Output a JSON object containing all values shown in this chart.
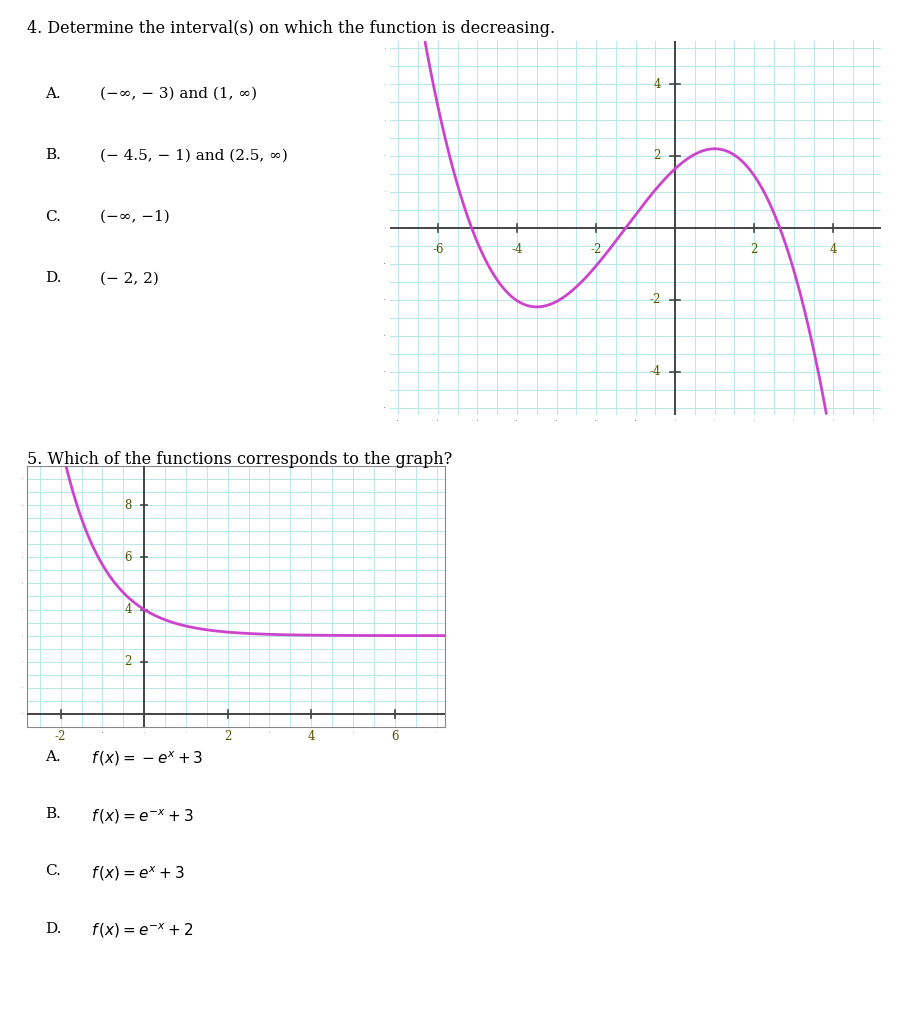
{
  "title4": "4. Determine the interval(s) on which the function is decreasing.",
  "title5": "5. Which of the functions corresponds to the graph?",
  "curve_color": "#CC44CC",
  "grid_color": "#B8E8E8",
  "axis_color": "#444444",
  "background": "#FFFFFF",
  "graph1_xlim": [
    -7.2,
    5.2
  ],
  "graph1_ylim": [
    -5.2,
    5.2
  ],
  "graph1_xticks": [
    -6,
    -4,
    -2,
    2,
    4
  ],
  "graph1_yticks": [
    -4,
    -2,
    2,
    4
  ],
  "graph2_xlim": [
    -2.8,
    7.2
  ],
  "graph2_ylim": [
    -0.5,
    9.5
  ],
  "graph2_xticks": [
    -2,
    2,
    4,
    6
  ],
  "graph2_yticks": [
    2,
    4,
    6,
    8
  ],
  "k": 0.2897,
  "C": 1.6446
}
